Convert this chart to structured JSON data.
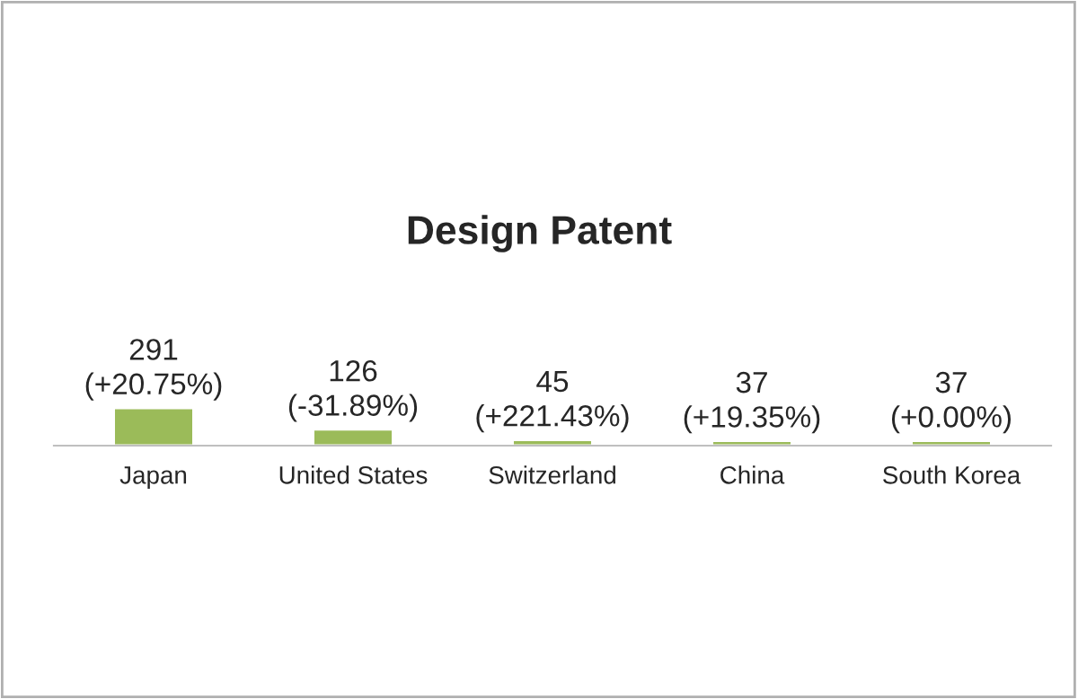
{
  "chart_data": {
    "type": "bar",
    "title": "Design Patent",
    "categories": [
      "Japan",
      "United States",
      "Switzerland",
      "China",
      "South Korea"
    ],
    "values": [
      291,
      126,
      45,
      37,
      37
    ],
    "value_labels": [
      "291\n(+20.75%)",
      "126\n(-31.89%)",
      "45\n(+221.43%)",
      "37\n(+19.35%)",
      "37\n(+0.00%)"
    ],
    "color": "#9bbb59"
  }
}
